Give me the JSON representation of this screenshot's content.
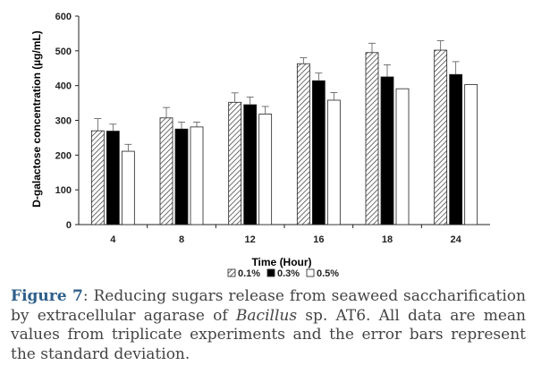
{
  "chart_data": {
    "type": "bar",
    "xlabel": "Time (Hour)",
    "ylabel": "D-galactose concentration (µg/mL)",
    "ylim": [
      0,
      600
    ],
    "yticks": [
      0,
      100,
      200,
      300,
      400,
      500,
      600
    ],
    "categories": [
      "4",
      "8",
      "12",
      "16",
      "18",
      "24"
    ],
    "legend_position": "bottom",
    "grid": false,
    "series": [
      {
        "name": "0.1%",
        "pattern": "hatched",
        "values": [
          270,
          307,
          352,
          463,
          495,
          502
        ],
        "errors": [
          35,
          30,
          27,
          17,
          27,
          27
        ]
      },
      {
        "name": "0.3%",
        "pattern": "solid",
        "values": [
          269,
          275,
          345,
          414,
          425,
          432
        ],
        "errors": [
          20,
          20,
          22,
          22,
          35,
          37
        ]
      },
      {
        "name": "0.5%",
        "pattern": "open",
        "values": [
          211,
          281,
          318,
          358,
          391,
          403
        ],
        "errors": [
          20,
          14,
          22,
          22,
          0,
          0
        ]
      }
    ]
  },
  "caption": {
    "figure_label": "Figure 7",
    "text_before_italic": ": Reducing sugars release from seaweed saccharification by extracellular agarase of ",
    "italic": "Bacillus",
    "text_after_italic": " sp. AT6. All data are mean values from triplicate experiments and the error bars represent the standard deviation."
  }
}
